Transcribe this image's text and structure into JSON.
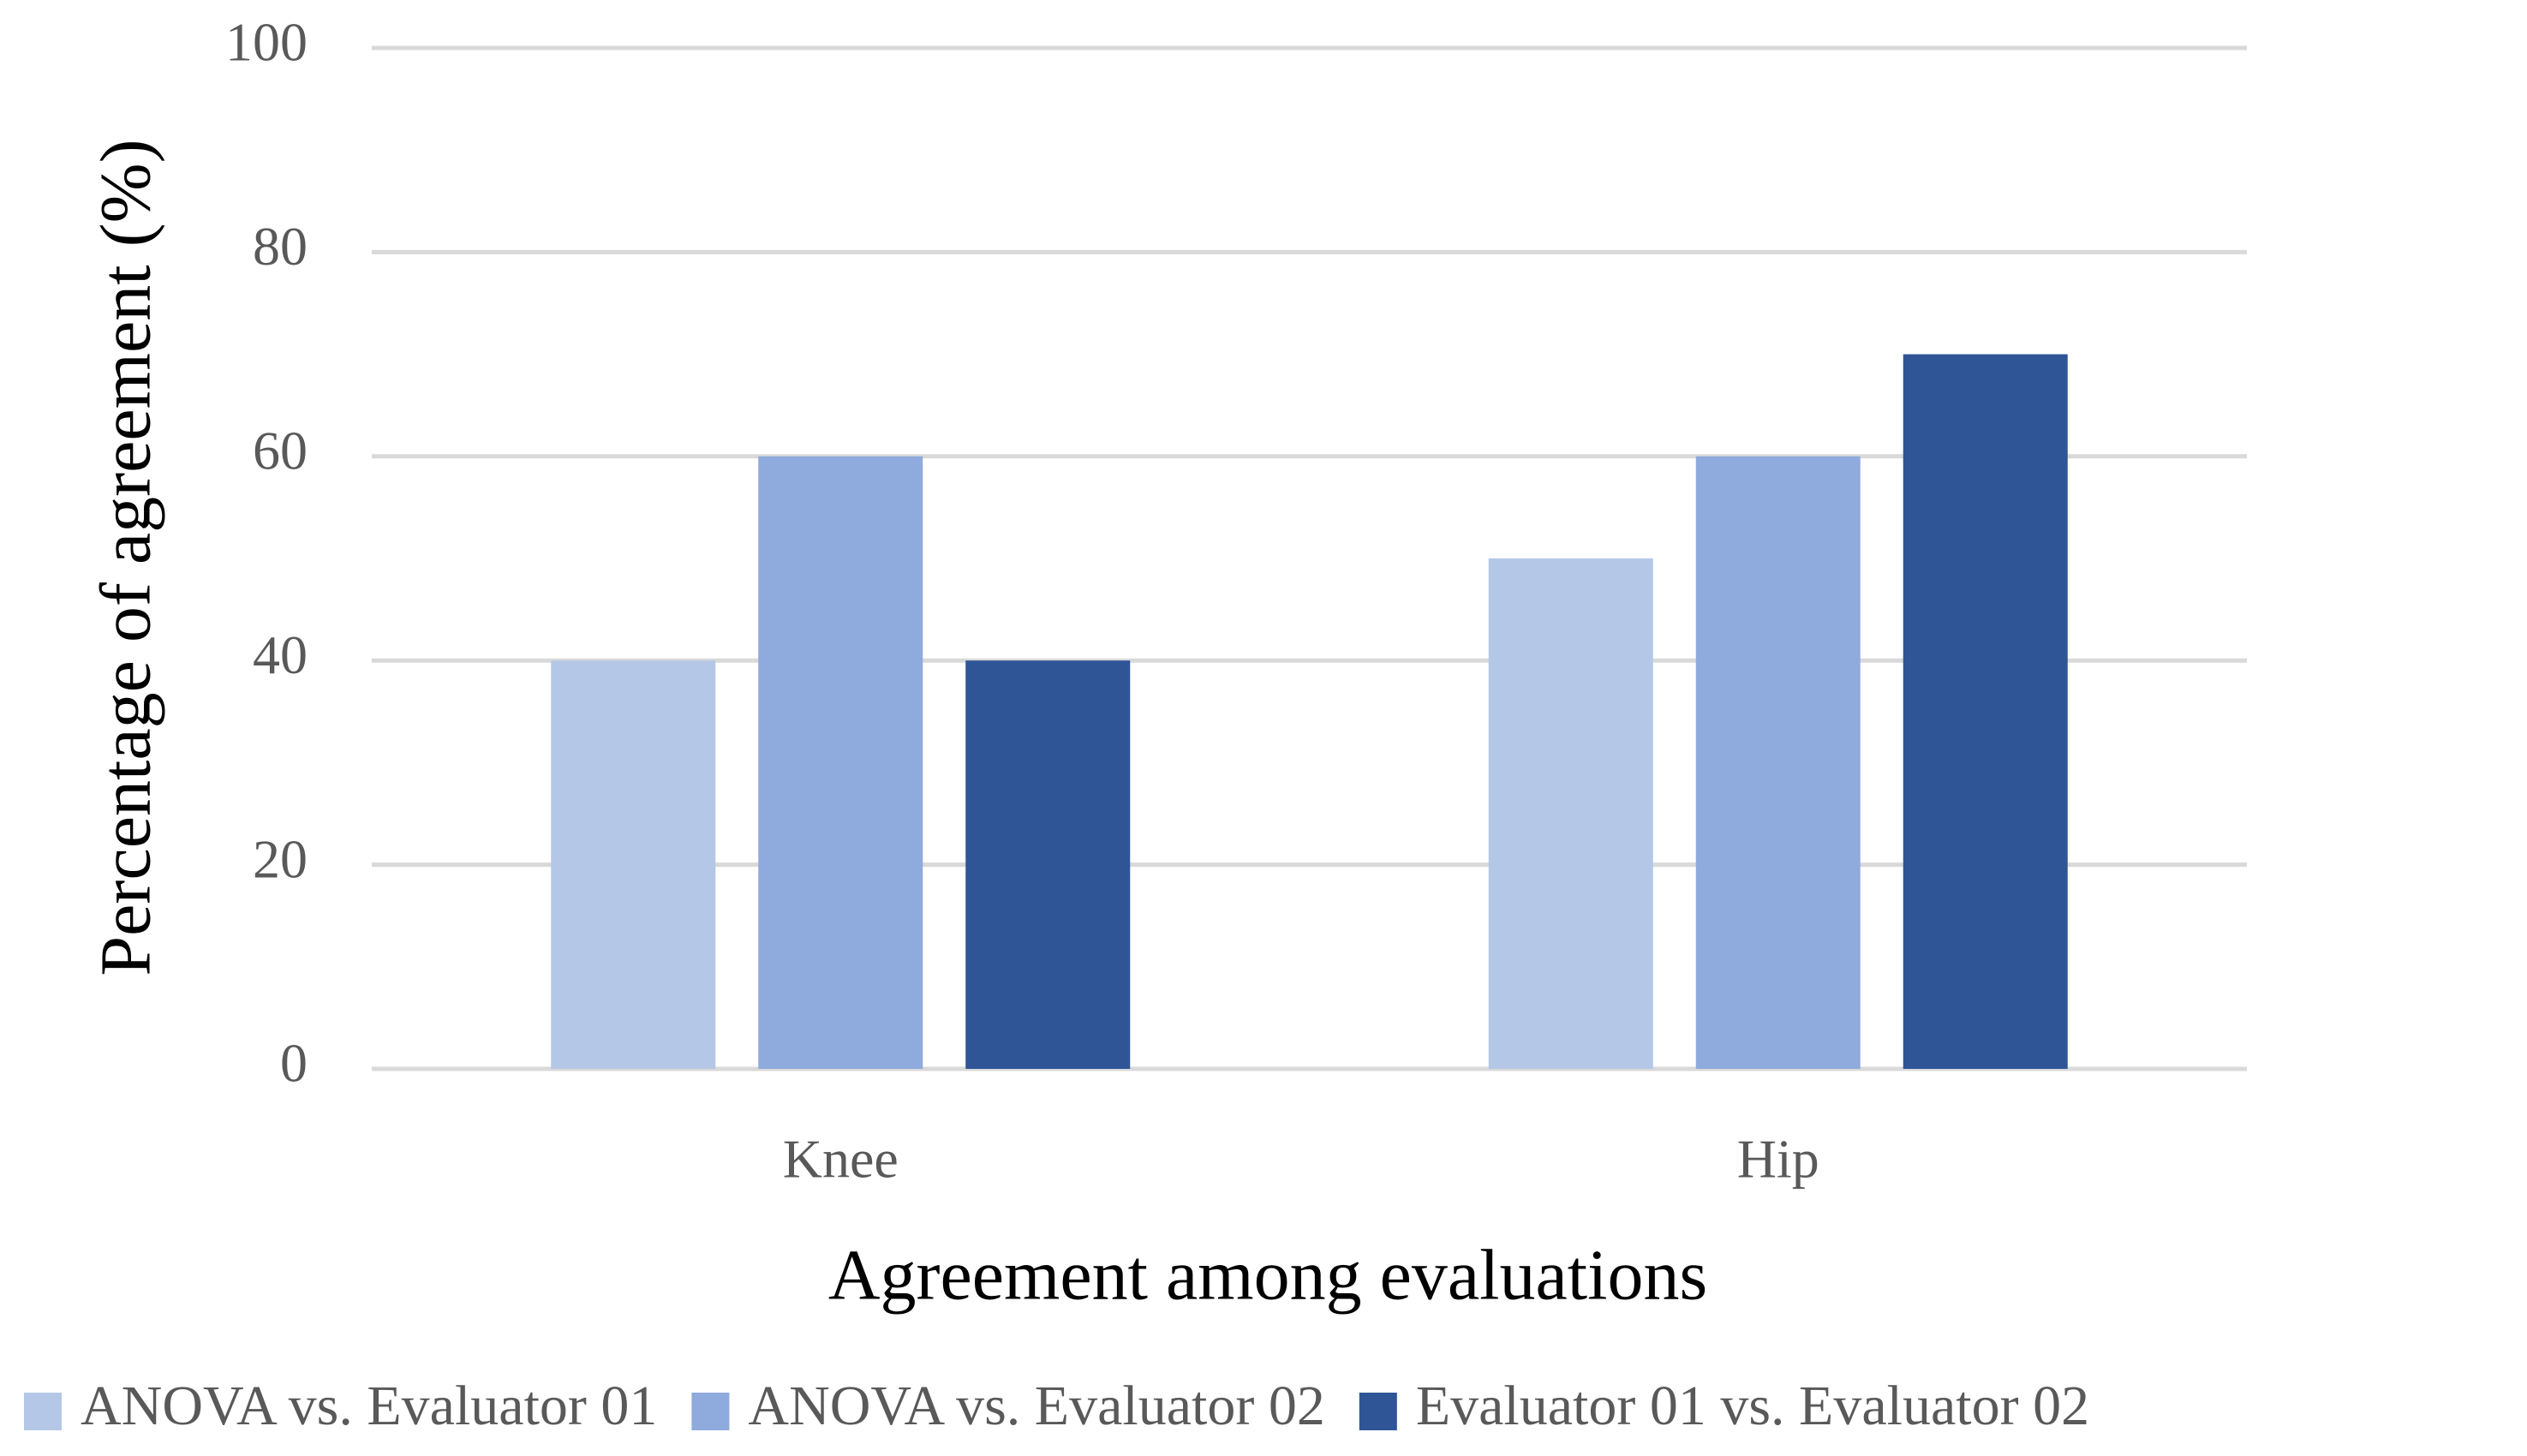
{
  "chart_data": {
    "type": "bar",
    "x_label": "Agreement among evaluations",
    "y_label": "Percentage of agreement (%)",
    "categories": [
      "Knee",
      "Hip"
    ],
    "series": [
      {
        "name": "ANOVA vs. Evaluator 01",
        "color": "#b4c7e7",
        "values": [
          40,
          50
        ]
      },
      {
        "name": "ANOVA vs. Evaluator 02",
        "color": "#8faadc",
        "values": [
          60,
          60
        ]
      },
      {
        "name": "Evaluator 01 vs. Evaluator 02",
        "color": "#2f5597",
        "values": [
          40,
          70
        ]
      }
    ],
    "ylim": [
      0,
      100
    ],
    "yticks": [
      0,
      20,
      40,
      60,
      80,
      100
    ],
    "grid": true,
    "legend": "bottom"
  }
}
